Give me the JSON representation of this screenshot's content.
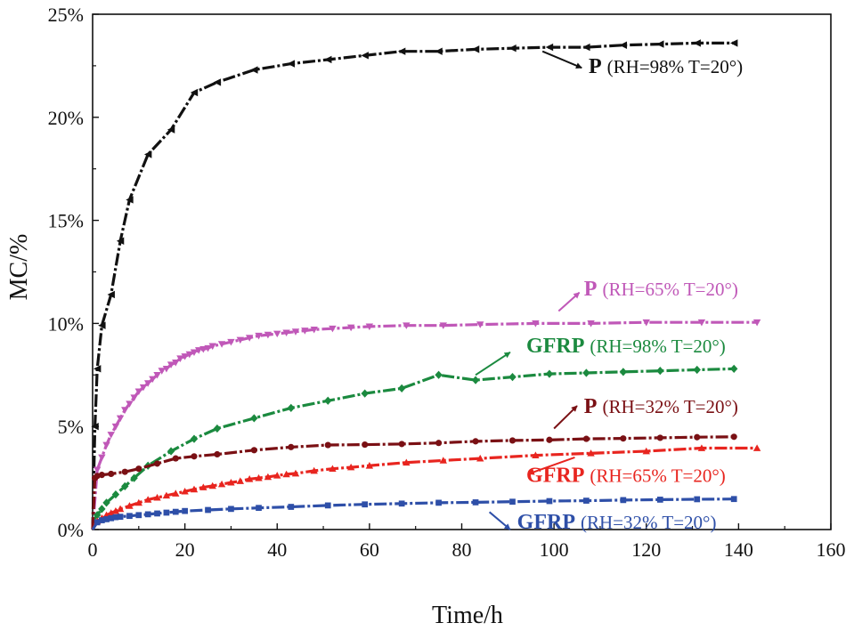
{
  "chart_data": {
    "type": "line",
    "title": "",
    "xlabel": "Time/h",
    "ylabel": "MC/%",
    "xlim": [
      0,
      160
    ],
    "ylim": [
      0,
      25
    ],
    "xticks": [
      "0",
      "20",
      "40",
      "60",
      "80",
      "100",
      "120",
      "140",
      "160"
    ],
    "yticks": [
      "0%",
      "5%",
      "10%",
      "15%",
      "20%",
      "25%"
    ],
    "grid": false,
    "series": [
      {
        "name": "P (RH=98% T=20°)",
        "color": "#111111",
        "marker": "triangle-left",
        "label_bold": "P",
        "label_rest": "(RH=98%  T=20°)",
        "x": [
          0,
          0.5,
          1,
          2,
          4,
          6,
          8,
          12,
          17,
          22,
          27,
          35,
          43,
          51,
          59,
          67,
          75,
          83,
          91,
          99,
          107,
          115,
          123,
          131,
          139
        ],
        "y": [
          0,
          5.0,
          7.8,
          9.9,
          11.4,
          14.0,
          16.0,
          18.2,
          19.4,
          21.2,
          21.7,
          22.3,
          22.6,
          22.8,
          23.0,
          23.2,
          23.2,
          23.3,
          23.35,
          23.4,
          23.4,
          23.5,
          23.55,
          23.6,
          23.6
        ]
      },
      {
        "name": "P (RH=65% T=20°)",
        "color": "#c058b8",
        "marker": "triangle-down",
        "label_bold": "P",
        "label_rest": "(RH=65%  T=20°)",
        "x": [
          0,
          1,
          2,
          3,
          4,
          5,
          6,
          7,
          8,
          9,
          10,
          11,
          12,
          13,
          14,
          15,
          16,
          17,
          18,
          19,
          20,
          21,
          22,
          23,
          24,
          25,
          26,
          28,
          30,
          32,
          34,
          36,
          38,
          40,
          42,
          44,
          46,
          48,
          52,
          56,
          60,
          68,
          76,
          84,
          96,
          108,
          120,
          132,
          144
        ],
        "y": [
          0,
          2.9,
          3.5,
          4.1,
          4.6,
          5.0,
          5.4,
          5.8,
          6.1,
          6.4,
          6.7,
          6.9,
          7.1,
          7.3,
          7.5,
          7.7,
          7.8,
          8.0,
          8.1,
          8.3,
          8.4,
          8.5,
          8.6,
          8.7,
          8.75,
          8.8,
          8.9,
          9.0,
          9.1,
          9.2,
          9.3,
          9.4,
          9.45,
          9.5,
          9.55,
          9.6,
          9.65,
          9.7,
          9.75,
          9.8,
          9.85,
          9.9,
          9.9,
          9.95,
          10.0,
          10.0,
          10.05,
          10.05,
          10.05
        ]
      },
      {
        "name": "GFRP (RH=98% T=20°)",
        "color": "#1b8a3f",
        "marker": "diamond",
        "label_bold": "GFRP",
        "label_rest": "(RH=98%  T=20°)",
        "x": [
          0,
          1,
          2,
          3,
          5,
          7,
          9,
          12,
          17,
          22,
          27,
          35,
          43,
          51,
          59,
          67,
          75,
          83,
          91,
          99,
          107,
          115,
          123,
          131,
          139
        ],
        "y": [
          0.4,
          0.7,
          1.0,
          1.3,
          1.7,
          2.1,
          2.5,
          3.1,
          3.8,
          4.4,
          4.9,
          5.4,
          5.9,
          6.25,
          6.6,
          6.85,
          7.5,
          7.25,
          7.4,
          7.55,
          7.6,
          7.65,
          7.7,
          7.75,
          7.8
        ]
      },
      {
        "name": "P (RH=32% T=20°)",
        "color": "#7a1014",
        "marker": "circle",
        "label_bold": "P",
        "label_rest": "(RH=32%  T=20°)",
        "x": [
          0,
          0.5,
          1,
          2,
          4,
          7,
          10,
          14,
          18,
          22,
          27,
          35,
          43,
          51,
          59,
          67,
          75,
          83,
          91,
          99,
          107,
          115,
          123,
          131,
          139
        ],
        "y": [
          0,
          2.5,
          2.6,
          2.65,
          2.7,
          2.8,
          2.95,
          3.2,
          3.45,
          3.55,
          3.65,
          3.85,
          4.0,
          4.1,
          4.12,
          4.15,
          4.2,
          4.28,
          4.32,
          4.35,
          4.4,
          4.42,
          4.45,
          4.48,
          4.5
        ]
      },
      {
        "name": "GFRP (RH=65% T=20°)",
        "color": "#e8251f",
        "marker": "triangle-up",
        "label_bold": "GFRP",
        "label_rest": "(RH=65%  T=20°)",
        "x": [
          0,
          1,
          2,
          3,
          4,
          5,
          6,
          8,
          10,
          12,
          14,
          16,
          18,
          20,
          22,
          24,
          26,
          28,
          30,
          32,
          34,
          36,
          38,
          40,
          42,
          44,
          48,
          52,
          56,
          60,
          68,
          76,
          84,
          96,
          108,
          120,
          132,
          144
        ],
        "y": [
          0,
          0.4,
          0.55,
          0.7,
          0.8,
          0.9,
          1.0,
          1.15,
          1.3,
          1.45,
          1.55,
          1.65,
          1.75,
          1.85,
          1.95,
          2.05,
          2.12,
          2.2,
          2.28,
          2.35,
          2.45,
          2.5,
          2.55,
          2.62,
          2.68,
          2.72,
          2.85,
          2.95,
          3.02,
          3.1,
          3.25,
          3.35,
          3.45,
          3.6,
          3.7,
          3.8,
          3.95,
          3.95
        ]
      },
      {
        "name": "GFRP (RH=32% T=20°)",
        "color": "#2e4fa8",
        "marker": "square",
        "label_bold": "GFRP",
        "label_rest": "(RH=32%  T=20°)",
        "x": [
          0,
          1,
          2,
          3,
          4,
          5,
          6,
          8,
          10,
          12,
          14,
          16,
          18,
          20,
          25,
          30,
          36,
          43,
          51,
          59,
          67,
          75,
          83,
          91,
          99,
          107,
          115,
          123,
          131,
          139
        ],
        "y": [
          0,
          0.35,
          0.45,
          0.5,
          0.55,
          0.6,
          0.62,
          0.66,
          0.7,
          0.74,
          0.78,
          0.82,
          0.86,
          0.9,
          0.95,
          1.0,
          1.05,
          1.1,
          1.17,
          1.22,
          1.26,
          1.3,
          1.32,
          1.35,
          1.38,
          1.4,
          1.43,
          1.45,
          1.47,
          1.48
        ]
      }
    ]
  }
}
